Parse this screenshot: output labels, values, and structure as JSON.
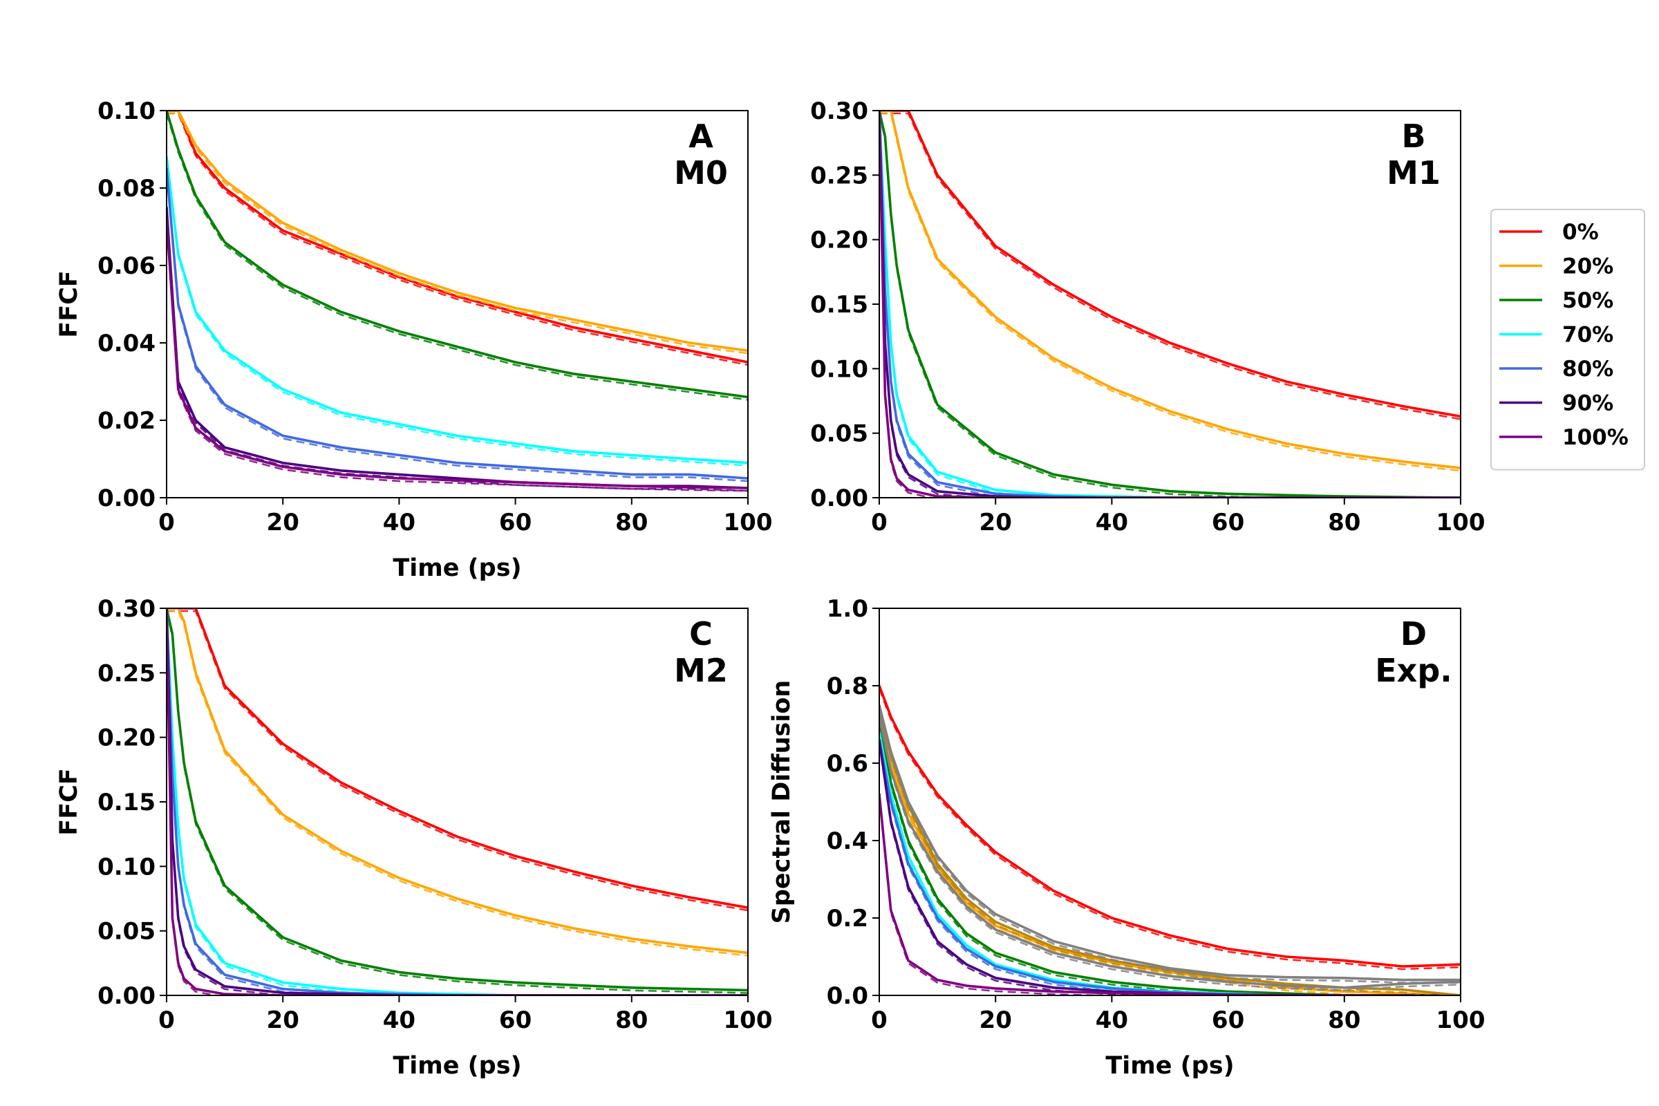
{
  "legend": {
    "entries": [
      {
        "label": "0%",
        "color": "#ff0000"
      },
      {
        "label": "20%",
        "color": "#ffa500"
      },
      {
        "label": "50%",
        "color": "#008000"
      },
      {
        "label": "70%",
        "color": "#00ffff"
      },
      {
        "label": "80%",
        "color": "#4169e1"
      },
      {
        "label": "90%",
        "color": "#4b0082"
      },
      {
        "label": "100%",
        "color": "#800080"
      }
    ],
    "placement": "right"
  },
  "chart_data": [
    {
      "type": "line",
      "panel_label": [
        "A",
        "M0"
      ],
      "xlabel": "Time (ps)",
      "ylabel": "FFCF",
      "xlim": [
        0,
        100
      ],
      "ylim": [
        0,
        0.1
      ],
      "xticks": [
        "0",
        "20",
        "40",
        "60",
        "80",
        "100"
      ],
      "yticks": [
        "0.00",
        "0.02",
        "0.04",
        "0.06",
        "0.08",
        "0.10"
      ],
      "x": [
        0,
        2,
        5,
        10,
        20,
        30,
        40,
        50,
        60,
        70,
        80,
        90,
        100
      ],
      "series": [
        {
          "name": "0%",
          "color": "#ff0000",
          "values": [
            0.1,
            0.1,
            0.089,
            0.08,
            0.069,
            0.063,
            0.057,
            0.052,
            0.048,
            0.044,
            0.041,
            0.038,
            0.035
          ]
        },
        {
          "name": "20%",
          "color": "#ffa500",
          "values": [
            0.1,
            0.1,
            0.091,
            0.082,
            0.071,
            0.064,
            0.058,
            0.053,
            0.049,
            0.046,
            0.043,
            0.04,
            0.038
          ]
        },
        {
          "name": "50%",
          "color": "#008000",
          "values": [
            0.1,
            0.09,
            0.078,
            0.066,
            0.055,
            0.048,
            0.043,
            0.039,
            0.035,
            0.032,
            0.03,
            0.028,
            0.026
          ]
        },
        {
          "name": "70%",
          "color": "#00ffff",
          "values": [
            0.088,
            0.063,
            0.048,
            0.038,
            0.028,
            0.022,
            0.019,
            0.016,
            0.014,
            0.012,
            0.011,
            0.01,
            0.009
          ]
        },
        {
          "name": "80%",
          "color": "#4169e1",
          "values": [
            0.085,
            0.05,
            0.034,
            0.024,
            0.016,
            0.013,
            0.011,
            0.009,
            0.008,
            0.007,
            0.006,
            0.006,
            0.005
          ]
        },
        {
          "name": "90%",
          "color": "#4b0082",
          "values": [
            0.075,
            0.03,
            0.02,
            0.013,
            0.009,
            0.007,
            0.006,
            0.005,
            0.004,
            0.0035,
            0.003,
            0.003,
            0.0025
          ]
        },
        {
          "name": "100%",
          "color": "#800080",
          "values": [
            0.072,
            0.028,
            0.018,
            0.012,
            0.008,
            0.006,
            0.005,
            0.0045,
            0.004,
            0.0035,
            0.003,
            0.0027,
            0.0025
          ]
        }
      ]
    },
    {
      "type": "line",
      "panel_label": [
        "B",
        "M1"
      ],
      "xlabel": "",
      "ylabel": "",
      "xlim": [
        0,
        100
      ],
      "ylim": [
        0,
        0.3
      ],
      "xticks": [
        "0",
        "20",
        "40",
        "60",
        "80",
        "100"
      ],
      "yticks": [
        "0.00",
        "0.05",
        "0.10",
        "0.15",
        "0.20",
        "0.25",
        "0.30"
      ],
      "x": [
        0,
        1,
        2,
        3,
        5,
        10,
        20,
        30,
        40,
        50,
        60,
        70,
        80,
        90,
        100
      ],
      "series": [
        {
          "name": "0%",
          "color": "#ff0000",
          "values": [
            0.3,
            0.3,
            0.3,
            0.3,
            0.3,
            0.25,
            0.195,
            0.165,
            0.14,
            0.12,
            0.104,
            0.09,
            0.08,
            0.071,
            0.063
          ]
        },
        {
          "name": "20%",
          "color": "#ffa500",
          "values": [
            0.3,
            0.3,
            0.3,
            0.28,
            0.24,
            0.185,
            0.14,
            0.108,
            0.085,
            0.067,
            0.053,
            0.042,
            0.034,
            0.028,
            0.023
          ]
        },
        {
          "name": "50%",
          "color": "#008000",
          "values": [
            0.3,
            0.28,
            0.22,
            0.18,
            0.13,
            0.072,
            0.035,
            0.018,
            0.01,
            0.005,
            0.003,
            0.002,
            0.001,
            0.0005,
            0
          ]
        },
        {
          "name": "70%",
          "color": "#00ffff",
          "values": [
            0.3,
            0.2,
            0.12,
            0.08,
            0.048,
            0.02,
            0.006,
            0.002,
            0.001,
            0,
            0,
            0,
            0,
            0,
            0
          ]
        },
        {
          "name": "80%",
          "color": "#4169e1",
          "values": [
            0.3,
            0.16,
            0.09,
            0.06,
            0.034,
            0.012,
            0.003,
            0.001,
            0,
            0,
            0,
            0,
            0,
            0,
            0
          ]
        },
        {
          "name": "90%",
          "color": "#4b0082",
          "values": [
            0.3,
            0.12,
            0.06,
            0.035,
            0.018,
            0.005,
            0.001,
            0,
            0,
            0,
            0,
            0,
            0,
            0,
            0
          ]
        },
        {
          "name": "100%",
          "color": "#800080",
          "values": [
            0.3,
            0.08,
            0.03,
            0.015,
            0.006,
            0.001,
            0,
            0,
            0,
            0,
            0,
            0,
            0,
            0,
            0
          ]
        }
      ]
    },
    {
      "type": "line",
      "panel_label": [
        "C",
        "M2"
      ],
      "xlabel": "Time (ps)",
      "ylabel": "FFCF",
      "xlim": [
        0,
        100
      ],
      "ylim": [
        0,
        0.3
      ],
      "xticks": [
        "0",
        "20",
        "40",
        "60",
        "80",
        "100"
      ],
      "yticks": [
        "0.00",
        "0.05",
        "0.10",
        "0.15",
        "0.20",
        "0.25",
        "0.30"
      ],
      "x": [
        0,
        1,
        2,
        3,
        5,
        10,
        20,
        30,
        40,
        50,
        60,
        70,
        80,
        90,
        100
      ],
      "series": [
        {
          "name": "0%",
          "color": "#ff0000",
          "values": [
            0.3,
            0.3,
            0.3,
            0.3,
            0.3,
            0.24,
            0.195,
            0.165,
            0.143,
            0.123,
            0.108,
            0.096,
            0.085,
            0.076,
            0.068
          ]
        },
        {
          "name": "20%",
          "color": "#ffa500",
          "values": [
            0.3,
            0.3,
            0.3,
            0.29,
            0.25,
            0.19,
            0.14,
            0.112,
            0.091,
            0.075,
            0.062,
            0.052,
            0.044,
            0.038,
            0.033
          ]
        },
        {
          "name": "50%",
          "color": "#008000",
          "values": [
            0.3,
            0.28,
            0.22,
            0.18,
            0.135,
            0.085,
            0.045,
            0.027,
            0.018,
            0.013,
            0.01,
            0.008,
            0.006,
            0.005,
            0.004
          ]
        },
        {
          "name": "70%",
          "color": "#00ffff",
          "values": [
            0.3,
            0.2,
            0.13,
            0.09,
            0.055,
            0.025,
            0.01,
            0.005,
            0.002,
            0.001,
            0,
            0,
            0,
            0,
            0
          ]
        },
        {
          "name": "80%",
          "color": "#4169e1",
          "values": [
            0.3,
            0.17,
            0.1,
            0.07,
            0.04,
            0.016,
            0.005,
            0.002,
            0.001,
            0,
            0,
            0,
            0,
            0,
            0
          ]
        },
        {
          "name": "90%",
          "color": "#4b0082",
          "values": [
            0.3,
            0.12,
            0.06,
            0.038,
            0.02,
            0.007,
            0.002,
            0.001,
            0,
            0,
            0,
            0,
            0,
            0,
            0
          ]
        },
        {
          "name": "100%",
          "color": "#800080",
          "values": [
            0.3,
            0.06,
            0.025,
            0.013,
            0.005,
            0.001,
            0,
            0,
            0,
            0,
            0,
            0,
            0,
            0,
            0
          ]
        }
      ]
    },
    {
      "type": "line",
      "panel_label": [
        "D",
        "Exp."
      ],
      "xlabel": "Time (ps)",
      "ylabel": "Spectral Diffusion",
      "xlim": [
        0,
        100
      ],
      "ylim": [
        0,
        1.0
      ],
      "xticks": [
        "0",
        "20",
        "40",
        "60",
        "80",
        "100"
      ],
      "yticks": [
        "0.0",
        "0.2",
        "0.4",
        "0.6",
        "0.8",
        "1.0"
      ],
      "x": [
        0,
        2,
        5,
        10,
        15,
        20,
        30,
        40,
        50,
        60,
        70,
        80,
        90,
        100
      ],
      "series": [
        {
          "name": "0%",
          "color": "#ff0000",
          "values": [
            0.8,
            0.72,
            0.63,
            0.52,
            0.44,
            0.37,
            0.27,
            0.2,
            0.155,
            0.12,
            0.1,
            0.09,
            0.075,
            0.08
          ]
        },
        {
          "name": "20%",
          "color": "#ffa500",
          "values": [
            0.72,
            0.6,
            0.47,
            0.33,
            0.24,
            0.18,
            0.12,
            0.085,
            0.06,
            0.04,
            0.02,
            0.01,
            0.005,
            0
          ]
        },
        {
          "name": "50%",
          "color": "#008000",
          "values": [
            0.7,
            0.55,
            0.4,
            0.25,
            0.16,
            0.11,
            0.06,
            0.035,
            0.02,
            0.01,
            0.005,
            0,
            0,
            0
          ]
        },
        {
          "name": "70%",
          "color": "#00ffff",
          "values": [
            0.68,
            0.52,
            0.36,
            0.21,
            0.13,
            0.08,
            0.04,
            0.02,
            0.01,
            0.005,
            0,
            0,
            0,
            0
          ]
        },
        {
          "name": "80%",
          "color": "#4169e1",
          "values": [
            0.66,
            0.5,
            0.34,
            0.2,
            0.12,
            0.075,
            0.035,
            0.018,
            0.008,
            0.003,
            0,
            0,
            0,
            0
          ]
        },
        {
          "name": "90%",
          "color": "#4b0082",
          "values": [
            0.66,
            0.45,
            0.28,
            0.14,
            0.08,
            0.045,
            0.02,
            0.01,
            0.005,
            0.002,
            0,
            0,
            0,
            0
          ]
        },
        {
          "name": "100%",
          "color": "#800080",
          "values": [
            0.52,
            0.22,
            0.09,
            0.04,
            0.025,
            0.018,
            0.01,
            0.006,
            0.004,
            0.002,
            0.001,
            0,
            0,
            0
          ]
        },
        {
          "name": "",
          "color": "#b8860b",
          "values": [
            0.73,
            0.62,
            0.49,
            0.34,
            0.25,
            0.19,
            0.125,
            0.09,
            0.065,
            0.045,
            0.03,
            0.02,
            0.015,
            0
          ]
        },
        {
          "name": "",
          "color": "#808080",
          "values": [
            0.75,
            0.63,
            0.5,
            0.36,
            0.27,
            0.21,
            0.14,
            0.1,
            0.07,
            0.052,
            0.047,
            0.045,
            0.04,
            0.04
          ]
        },
        {
          "name": "",
          "color": "#808080",
          "values": [
            0.72,
            0.58,
            0.45,
            0.32,
            0.23,
            0.17,
            0.11,
            0.075,
            0.05,
            0.035,
            0.025,
            0.02,
            0.03,
            0.035
          ]
        }
      ]
    }
  ]
}
